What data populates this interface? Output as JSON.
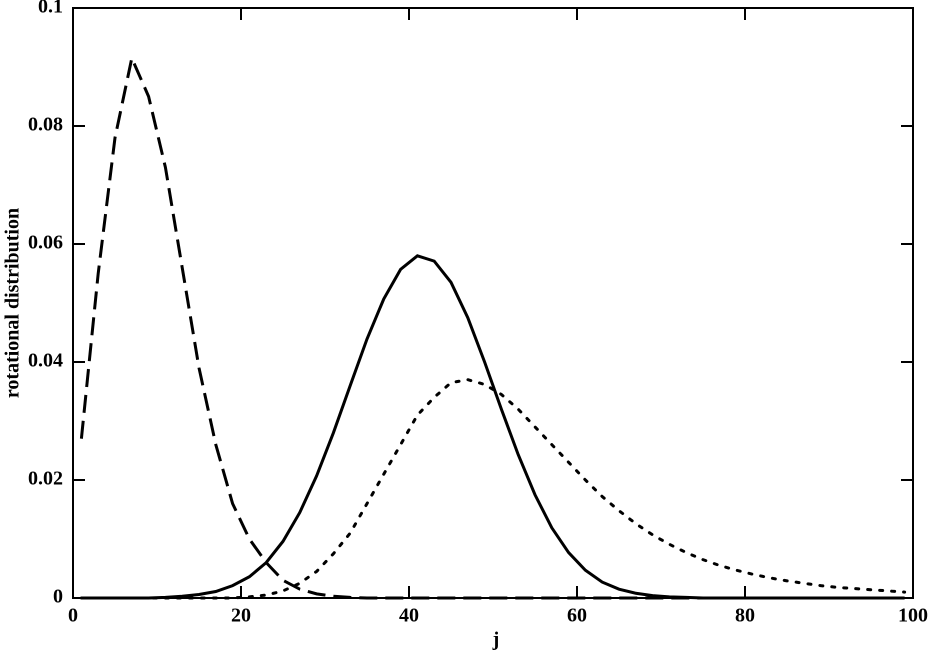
{
  "chart_data": {
    "type": "line",
    "xlabel": "j",
    "ylabel": "rotational distribution",
    "x": [
      1,
      3,
      5,
      7,
      9,
      11,
      13,
      15,
      17,
      19,
      21,
      23,
      25,
      27,
      29,
      31,
      33,
      35,
      37,
      39,
      41,
      43,
      45,
      47,
      49,
      51,
      53,
      55,
      57,
      59,
      61,
      63,
      65,
      67,
      69,
      71,
      73,
      75,
      77,
      79,
      81,
      83,
      85,
      87,
      89,
      91,
      93,
      95,
      97,
      99
    ],
    "series": [
      {
        "color": "#000000",
        "dash": "dashed",
        "values": [
          0.027,
          0.055,
          0.078,
          0.0915,
          0.085,
          0.073,
          0.056,
          0.039,
          0.026,
          0.016,
          0.01,
          0.006,
          0.003,
          0.0015,
          0.0007,
          0.0003,
          0.0001,
          0,
          0,
          0,
          0,
          0,
          0,
          0,
          0,
          0,
          0,
          0,
          0,
          0,
          0,
          0,
          0,
          0,
          0,
          0,
          0,
          0,
          0,
          0,
          0,
          0,
          0,
          0,
          0,
          0,
          0,
          0,
          0,
          0
        ]
      },
      {
        "color": "#000000",
        "dash": "solid",
        "values": [
          0,
          0,
          0,
          0,
          0,
          0.0001,
          0.0003,
          0.0006,
          0.0011,
          0.0021,
          0.0036,
          0.006,
          0.0096,
          0.0145,
          0.0207,
          0.028,
          0.036,
          0.0439,
          0.0507,
          0.0557,
          0.058,
          0.0571,
          0.0535,
          0.0475,
          0.04,
          0.032,
          0.0243,
          0.0175,
          0.0119,
          0.0077,
          0.0047,
          0.0027,
          0.0015,
          0.0008,
          0.0004,
          0.0002,
          0.0001,
          0,
          0,
          0,
          0,
          0,
          0,
          0,
          0,
          0,
          0,
          0,
          0,
          0
        ]
      },
      {
        "color": "#000000",
        "dash": "dotted",
        "values": [
          0,
          0,
          0,
          0,
          0,
          0,
          0,
          0,
          0,
          0,
          0.0002,
          0.0005,
          0.0012,
          0.0025,
          0.0045,
          0.0075,
          0.011,
          0.016,
          0.021,
          0.026,
          0.031,
          0.034,
          0.0365,
          0.037,
          0.0362,
          0.0345,
          0.032,
          0.029,
          0.026,
          0.023,
          0.02,
          0.0172,
          0.0148,
          0.0126,
          0.0107,
          0.0091,
          0.0077,
          0.0065,
          0.0055,
          0.0047,
          0.004,
          0.0034,
          0.0029,
          0.0025,
          0.0021,
          0.0018,
          0.0016,
          0.0014,
          0.0012,
          0.001
        ]
      }
    ],
    "xlim": [
      0,
      100
    ],
    "xticks": [
      0,
      20,
      40,
      60,
      80,
      100
    ],
    "ylim": [
      0,
      0.1
    ],
    "yticks": [
      0,
      0.02,
      0.04,
      0.06,
      0.08,
      0.1
    ]
  }
}
